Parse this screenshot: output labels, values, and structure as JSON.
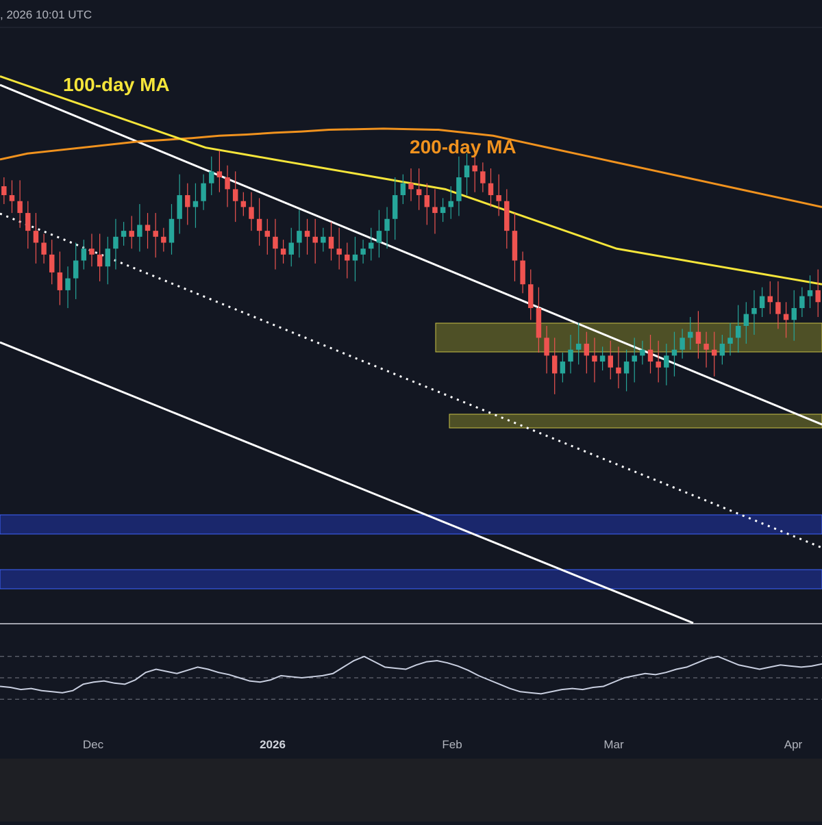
{
  "header": {
    "timestamp_text": ", 2026 10:01 UTC"
  },
  "labels": {
    "ma100": "100-day MA",
    "ma200": "200-day MA"
  },
  "colors": {
    "background": "#131722",
    "up": "#26a69a",
    "down": "#ef5350",
    "ma100": "#f5e53a",
    "ma200": "#f0921e",
    "channel": "#ffffff",
    "resistance_zone": "#8a8a2a",
    "support_zone": "#1e2f8c",
    "rsi_line": "#c9cfe0"
  },
  "chart_data": {
    "type": "candlestick",
    "x_ticks": [
      {
        "label": "Dec",
        "bold": false
      },
      {
        "label": "2026",
        "bold": true
      },
      {
        "label": "Feb",
        "bold": false
      },
      {
        "label": "Mar",
        "bold": false
      },
      {
        "label": "Apr",
        "bold": false
      }
    ],
    "ylim": [
      0,
      100
    ],
    "candles_close": [
      72,
      71,
      69,
      66,
      64,
      62,
      59,
      56,
      58,
      61,
      63,
      62,
      60,
      63,
      65,
      66,
      65,
      67,
      66,
      65,
      64,
      68,
      72,
      70,
      71,
      74,
      76,
      75,
      73,
      71,
      70,
      68,
      66,
      65,
      63,
      62,
      64,
      66,
      65,
      64,
      65,
      63,
      62,
      61,
      62,
      63,
      64,
      66,
      68,
      72,
      74,
      73,
      72,
      70,
      69,
      70,
      71,
      75,
      77,
      76,
      74,
      72,
      71,
      66,
      61,
      57,
      53,
      48,
      45,
      42,
      44,
      46,
      47,
      45,
      44,
      45,
      43,
      42,
      44,
      45,
      46,
      44,
      43,
      45,
      46,
      48,
      49,
      47,
      46,
      45,
      47,
      48,
      50,
      52,
      53,
      55,
      54,
      52,
      51,
      53,
      55,
      56,
      54
    ],
    "ma100": [
      92,
      91,
      90,
      89,
      88,
      87,
      86,
      85,
      84,
      83,
      82,
      81,
      80,
      79.5,
      79,
      78.5,
      78,
      77.5,
      77,
      76.5,
      76,
      75.5,
      75,
      74.5,
      74,
      73.5,
      73,
      72,
      71,
      70,
      69,
      68,
      67,
      66,
      65,
      64,
      63,
      62.5,
      62,
      61.5,
      61,
      60.5,
      60,
      59.5,
      59,
      58.5,
      58,
      57.5,
      57
    ],
    "ma200": [
      78,
      79,
      79.5,
      80,
      80.5,
      81,
      81.3,
      81.6,
      82,
      82.2,
      82.5,
      82.7,
      83,
      83.1,
      83.2,
      83.1,
      83,
      82.5,
      82,
      81,
      80,
      79,
      78,
      77,
      76,
      75,
      74,
      73,
      72,
      71,
      70
    ],
    "rsi": [
      42,
      41,
      39,
      40,
      38,
      37,
      36,
      38,
      44,
      46,
      47,
      45,
      44,
      48,
      55,
      58,
      56,
      54,
      57,
      60,
      58,
      55,
      53,
      50,
      47,
      46,
      48,
      52,
      51,
      50,
      51,
      52,
      54,
      60,
      66,
      70,
      65,
      60,
      59,
      58,
      62,
      65,
      66,
      64,
      61,
      57,
      52,
      48,
      44,
      40,
      37,
      36,
      35,
      37,
      39,
      40,
      39,
      41,
      42,
      46,
      50,
      52,
      54,
      53,
      55,
      58,
      60,
      64,
      68,
      70,
      66,
      62,
      60,
      58,
      60,
      62,
      61,
      60,
      61,
      63
    ],
    "zones": [
      {
        "kind": "resistance",
        "name": "upper-resistance"
      },
      {
        "kind": "resistance",
        "name": "lower-resistance"
      },
      {
        "kind": "support",
        "name": "upper-support"
      },
      {
        "kind": "support",
        "name": "lower-support"
      }
    ]
  }
}
